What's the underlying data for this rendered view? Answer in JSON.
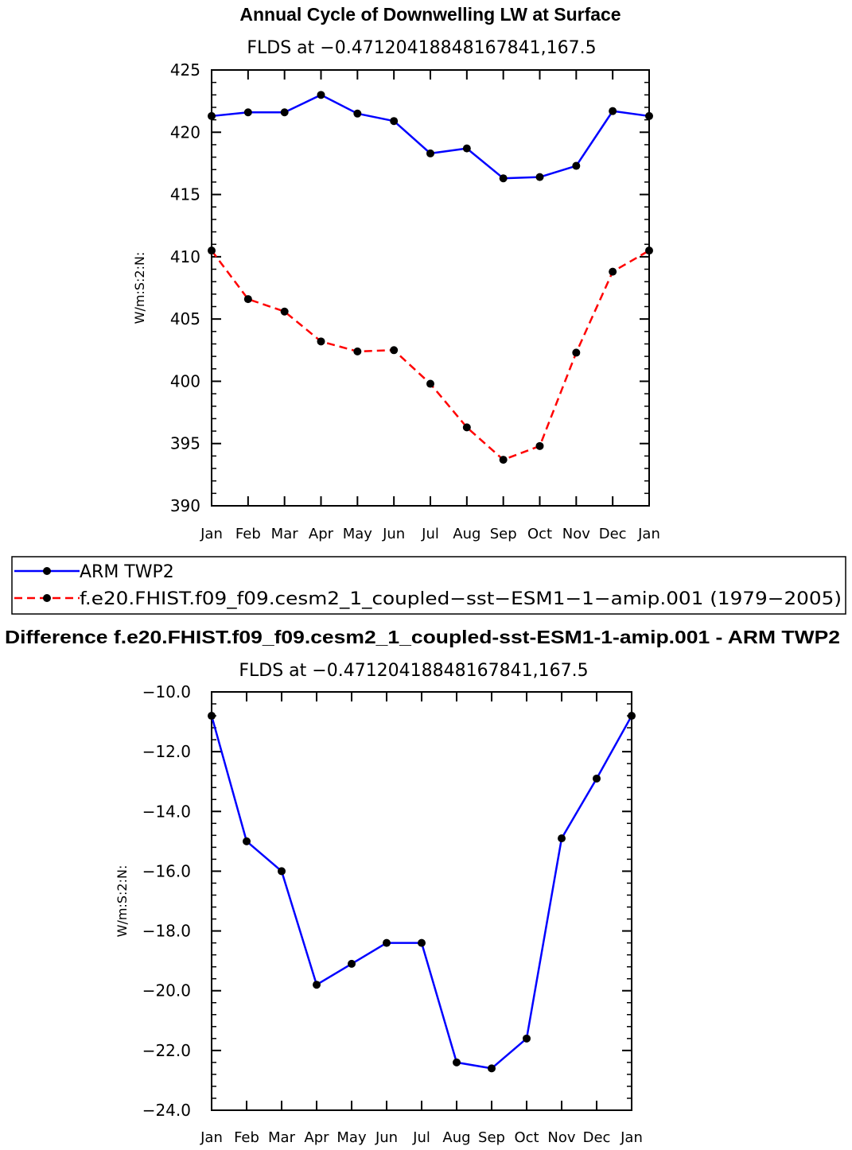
{
  "chart_data": [
    {
      "type": "line",
      "title": "Annual Cycle of Downwelling LW at Surface",
      "subtitle": "FLDS at −0.47120418848167841,167.5",
      "ylabel": "W/m:S:2:N:",
      "categories": [
        "Jan",
        "Feb",
        "Mar",
        "Apr",
        "May",
        "Jun",
        "Jul",
        "Aug",
        "Sep",
        "Oct",
        "Nov",
        "Dec",
        "Jan"
      ],
      "ylim": [
        390,
        425
      ],
      "yticks": [
        "390",
        "395",
        "400",
        "405",
        "410",
        "415",
        "420",
        "425"
      ],
      "series": [
        {
          "name": "ARM TWP2",
          "color": "#0000ff",
          "dash": "solid",
          "values": [
            421.3,
            421.6,
            421.6,
            423.0,
            421.5,
            420.9,
            418.3,
            418.7,
            416.3,
            416.4,
            417.3,
            421.7,
            421.3
          ]
        },
        {
          "name": "f.e20.FHIST.f09_f09.cesm2_1_coupled−sst−ESM1−1−amip.001 (1979−2005)",
          "color": "#ff0000",
          "dash": "dashed",
          "values": [
            410.5,
            406.6,
            405.6,
            403.2,
            402.4,
            402.5,
            399.8,
            396.3,
            393.7,
            394.8,
            402.3,
            408.8,
            410.5
          ]
        }
      ]
    },
    {
      "type": "line",
      "title": "Difference f.e20.FHIST.f09_f09.cesm2_1_coupled-sst-ESM1-1-amip.001 - ARM TWP2",
      "subtitle": "FLDS at −0.47120418848167841,167.5",
      "ylabel": "W/m:S:2:N:",
      "categories": [
        "Jan",
        "Feb",
        "Mar",
        "Apr",
        "May",
        "Jun",
        "Jul",
        "Aug",
        "Sep",
        "Oct",
        "Nov",
        "Dec",
        "Jan"
      ],
      "ylim": [
        -24,
        -10
      ],
      "yticks": [
        "−24.0",
        "−22.0",
        "−20.0",
        "−18.0",
        "−16.0",
        "−14.0",
        "−12.0",
        "−10.0"
      ],
      "series": [
        {
          "name": "Difference",
          "color": "#0000ff",
          "dash": "solid",
          "values": [
            -10.8,
            -15.0,
            -16.0,
            -19.8,
            -19.1,
            -18.4,
            -18.4,
            -22.4,
            -22.6,
            -21.6,
            -14.9,
            -12.9,
            -10.8
          ]
        }
      ]
    }
  ]
}
